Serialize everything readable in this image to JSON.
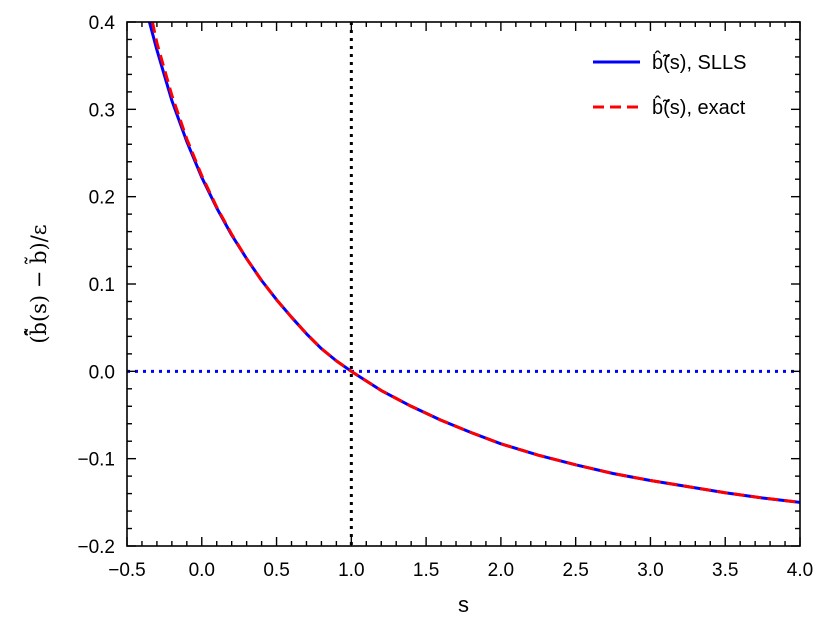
{
  "chart_data": {
    "type": "line",
    "xlabel": "s",
    "ylabel": "(b̂̃(s) − b̃)/ε",
    "xlim": [
      -0.5,
      4.0
    ],
    "ylim": [
      -0.2,
      0.4
    ],
    "xticks": [
      -0.5,
      0.0,
      0.5,
      1.0,
      1.5,
      2.0,
      2.5,
      3.0,
      3.5,
      4.0
    ],
    "xtick_labels": [
      "−0.5",
      "0.0",
      "0.5",
      "1.0",
      "1.5",
      "2.0",
      "2.5",
      "3.0",
      "3.5",
      "4.0"
    ],
    "yticks": [
      -0.2,
      -0.1,
      0.0,
      0.1,
      0.2,
      0.3,
      0.4
    ],
    "ytick_labels": [
      "−0.2",
      "−0.1",
      "0.0",
      "0.1",
      "0.2",
      "0.3",
      "0.4"
    ],
    "grid": false,
    "legend_position": "top-right",
    "series": [
      {
        "name": "b̂̃(s), SLLS",
        "color": "#0000ff",
        "style": "solid",
        "x": [
          -0.35,
          -0.3,
          -0.2,
          -0.1,
          0.0,
          0.1,
          0.2,
          0.3,
          0.4,
          0.5,
          0.6,
          0.7,
          0.8,
          0.9,
          1.0,
          1.2,
          1.4,
          1.6,
          1.8,
          2.0,
          2.25,
          2.5,
          2.75,
          3.0,
          3.25,
          3.5,
          3.75,
          4.0
        ],
        "y": [
          0.4,
          0.368,
          0.31,
          0.263,
          0.222,
          0.187,
          0.156,
          0.129,
          0.104,
          0.082,
          0.062,
          0.043,
          0.026,
          0.012,
          0.0,
          -0.022,
          -0.04,
          -0.056,
          -0.07,
          -0.083,
          -0.096,
          -0.107,
          -0.117,
          -0.125,
          -0.132,
          -0.139,
          -0.145,
          -0.15
        ]
      },
      {
        "name": "b̂̃(s), exact",
        "color": "#ff0000",
        "style": "dashed",
        "x": [
          -0.33,
          -0.3,
          -0.2,
          -0.1,
          0.0,
          0.1,
          0.2,
          0.3,
          0.4,
          0.5,
          0.6,
          0.7,
          0.8,
          0.9,
          1.0,
          1.2,
          1.4,
          1.6,
          1.8,
          2.0,
          2.25,
          2.5,
          2.75,
          3.0,
          3.25,
          3.5,
          3.75,
          4.0
        ],
        "y": [
          0.4,
          0.376,
          0.316,
          0.266,
          0.224,
          0.188,
          0.157,
          0.129,
          0.104,
          0.082,
          0.062,
          0.043,
          0.026,
          0.012,
          0.0,
          -0.022,
          -0.04,
          -0.056,
          -0.07,
          -0.083,
          -0.096,
          -0.107,
          -0.117,
          -0.125,
          -0.132,
          -0.139,
          -0.145,
          -0.15
        ]
      }
    ],
    "reference_lines": [
      {
        "orientation": "horizontal",
        "value": 0.0,
        "color": "#0000ff",
        "style": "dotted"
      },
      {
        "orientation": "vertical",
        "value": 1.0,
        "color": "#000000",
        "style": "dotted"
      }
    ]
  }
}
